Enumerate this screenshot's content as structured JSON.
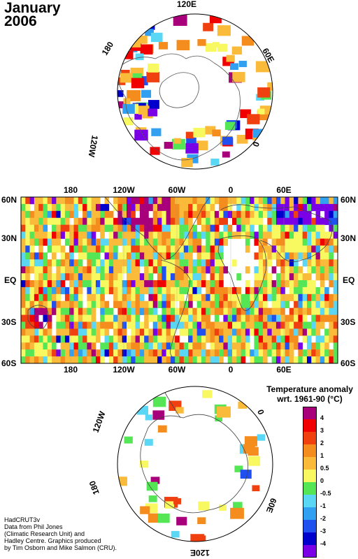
{
  "title": {
    "line1": "January",
    "line2": "2006"
  },
  "legend": {
    "title_line1": "Temperature anomaly",
    "title_line2": "wrt. 1961-90 (°C)",
    "bins": [
      {
        "label": "4",
        "color": "#a8007a"
      },
      {
        "label": "3",
        "color": "#f00000"
      },
      {
        "label": "2",
        "color": "#f04010"
      },
      {
        "label": "1",
        "color": "#f58c1e"
      },
      {
        "label": "0.5",
        "color": "#fbbb3a"
      },
      {
        "label": "0",
        "color": "#f8f860"
      },
      {
        "label": "-0.5",
        "color": "#55e655"
      },
      {
        "label": "-1",
        "color": "#5ad7f5"
      },
      {
        "label": "-2",
        "color": "#32a0f0"
      },
      {
        "label": "-3",
        "color": "#2050f0"
      },
      {
        "label": "-4",
        "color": "#0000cc"
      },
      {
        "label": "",
        "color": "#7a00e6"
      }
    ]
  },
  "credit": {
    "line1": "HadCRUT3v",
    "line2": "Data from Phil Jones",
    "line3": "(Climatic Research Unit) and",
    "line4": "Hadley Centre.  Graphics produced",
    "line5": "by Tim Osborn and Mike Salmon (CRU)."
  },
  "north_polar": {
    "labels": [
      "120E",
      "60E",
      "0",
      "120W",
      "180"
    ]
  },
  "south_polar": {
    "labels": [
      "120W",
      "0",
      "60E",
      "120E",
      "180"
    ]
  },
  "equirect": {
    "top_lon_labels": [
      "180",
      "120W",
      "60W",
      "0",
      "60E"
    ],
    "bottom_lon_labels": [
      "180",
      "120W",
      "60W",
      "0",
      "60E"
    ],
    "lat_labels": [
      "60N",
      "30N",
      "EQ",
      "30S",
      "60S"
    ]
  }
}
